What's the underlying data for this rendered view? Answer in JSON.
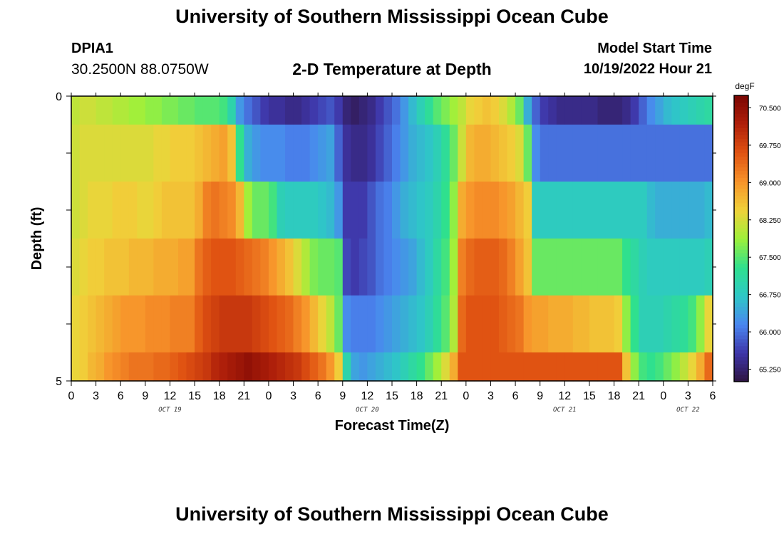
{
  "header": {
    "title": "University of Southern Mississippi Ocean Cube",
    "station_id": "DPIA1",
    "station_coords": "30.2500N  88.0750W",
    "chart_title": "2-D Temperature at Depth",
    "model_label": "Model Start Time",
    "model_value": "10/19/2022 Hour 21"
  },
  "footer": {
    "title": "University of Southern Mississippi Ocean Cube"
  },
  "colors": {
    "background": "#ffffff",
    "axis": "#000000",
    "palette": [
      "#2e1440",
      "#3e35a8",
      "#4a86f0",
      "#2ec8c6",
      "#2fe08e",
      "#9ef03a",
      "#f0d23a",
      "#f7932a",
      "#e05312",
      "#b0200a",
      "#7a0603"
    ]
  },
  "chart_data": {
    "type": "heatmap",
    "title": "2-D Temperature at Depth",
    "xlabel": "Forecast Time(Z)",
    "ylabel": "Depth (ft)",
    "unit": "degF",
    "xlim": [
      0,
      78
    ],
    "ylim": [
      0,
      5
    ],
    "x_ticks": [
      "0",
      "3",
      "6",
      "9",
      "12",
      "15",
      "18",
      "21",
      "0",
      "3",
      "6",
      "9",
      "12",
      "15",
      "18",
      "21",
      "0",
      "3",
      "6",
      "9",
      "12",
      "15",
      "18",
      "21",
      "0",
      "3",
      "6"
    ],
    "x_tick_hours": [
      0,
      3,
      6,
      9,
      12,
      15,
      18,
      21,
      24,
      27,
      30,
      33,
      36,
      39,
      42,
      45,
      48,
      51,
      54,
      57,
      60,
      63,
      66,
      69,
      72,
      75,
      78
    ],
    "day_labels": [
      {
        "label": "OCT 19",
        "hour": 12
      },
      {
        "label": "OCT 20",
        "hour": 36
      },
      {
        "label": "OCT 21",
        "hour": 60
      },
      {
        "label": "OCT 22",
        "hour": 75
      }
    ],
    "y_ticks": [
      {
        "value": 0,
        "label": "0"
      },
      {
        "value": 1,
        "label": ""
      },
      {
        "value": 2,
        "label": ""
      },
      {
        "value": 3,
        "label": ""
      },
      {
        "value": 4,
        "label": ""
      },
      {
        "value": 5,
        "label": "5"
      }
    ],
    "depth_bands": [
      [
        0.0,
        0.5
      ],
      [
        0.5,
        1.5
      ],
      [
        1.5,
        2.5
      ],
      [
        2.5,
        3.5
      ],
      [
        3.5,
        4.5
      ],
      [
        4.5,
        5.0
      ]
    ],
    "time_hours": [
      0,
      1,
      2,
      3,
      4,
      5,
      6,
      7,
      8,
      9,
      10,
      11,
      12,
      13,
      14,
      15,
      16,
      17,
      18,
      19,
      20,
      21,
      22,
      23,
      24,
      25,
      26,
      27,
      28,
      29,
      30,
      31,
      32,
      33,
      34,
      35,
      36,
      37,
      38,
      39,
      40,
      41,
      42,
      43,
      44,
      45,
      46,
      47,
      48,
      49,
      50,
      51,
      52,
      53,
      54,
      55,
      56,
      57,
      58,
      59,
      60,
      61,
      62,
      63,
      64,
      65,
      66,
      67,
      68,
      69,
      70,
      71,
      72,
      73,
      74,
      75,
      76,
      77
    ],
    "temperature_f": [
      [
        68.1,
        68.2,
        68.2,
        68.1,
        68.1,
        68.0,
        68.0,
        67.9,
        67.9,
        67.8,
        67.8,
        67.7,
        67.7,
        67.6,
        67.6,
        67.5,
        67.5,
        67.5,
        67.4,
        67.0,
        66.3,
        66.0,
        65.8,
        65.6,
        65.5,
        65.5,
        65.4,
        65.4,
        65.5,
        65.6,
        65.7,
        65.8,
        65.6,
        65.3,
        65.2,
        65.3,
        65.4,
        65.6,
        65.8,
        66.0,
        66.3,
        66.6,
        66.9,
        67.2,
        67.5,
        67.7,
        67.9,
        68.1,
        68.4,
        68.5,
        68.6,
        68.5,
        68.3,
        68.0,
        67.6,
        66.5,
        65.9,
        65.6,
        65.5,
        65.4,
        65.4,
        65.4,
        65.4,
        65.4,
        65.3,
        65.3,
        65.3,
        65.4,
        65.6,
        65.9,
        66.2,
        66.4,
        66.6,
        66.7,
        66.8,
        66.9,
        67.0,
        67.1
      ],
      [
        68.2,
        68.3,
        68.3,
        68.3,
        68.3,
        68.3,
        68.3,
        68.3,
        68.3,
        68.3,
        68.4,
        68.4,
        68.5,
        68.5,
        68.5,
        68.6,
        68.7,
        68.8,
        68.9,
        68.6,
        67.3,
        66.5,
        66.3,
        66.2,
        66.2,
        66.2,
        66.1,
        66.1,
        66.1,
        66.2,
        66.3,
        66.4,
        65.9,
        65.5,
        65.4,
        65.4,
        65.5,
        65.7,
        65.9,
        66.1,
        66.3,
        66.5,
        66.6,
        66.7,
        66.9,
        67.2,
        67.6,
        68.2,
        68.7,
        68.8,
        68.8,
        68.7,
        68.6,
        68.5,
        68.3,
        67.6,
        66.2,
        66.0,
        66.0,
        66.0,
        66.0,
        66.0,
        66.0,
        66.0,
        66.0,
        66.0,
        66.0,
        66.0,
        66.0,
        66.0,
        66.0,
        66.0,
        66.0,
        66.0,
        66.0,
        66.0,
        66.0,
        66.0
      ],
      [
        68.2,
        68.3,
        68.4,
        68.4,
        68.4,
        68.5,
        68.5,
        68.5,
        68.4,
        68.4,
        68.5,
        68.6,
        68.6,
        68.6,
        68.6,
        68.8,
        69.2,
        69.3,
        69.2,
        69.1,
        68.7,
        67.9,
        67.6,
        67.6,
        67.4,
        66.9,
        66.8,
        66.8,
        66.8,
        66.8,
        66.7,
        66.6,
        66.3,
        65.6,
        65.6,
        65.6,
        65.8,
        66.0,
        66.1,
        66.3,
        66.5,
        66.6,
        66.7,
        66.8,
        67.0,
        67.3,
        67.8,
        68.8,
        69.0,
        69.1,
        69.1,
        69.1,
        69.0,
        68.9,
        68.7,
        68.5,
        66.8,
        66.8,
        66.8,
        66.8,
        66.8,
        66.8,
        66.8,
        66.8,
        66.8,
        66.8,
        66.8,
        66.8,
        66.8,
        66.8,
        66.6,
        66.5,
        66.5,
        66.5,
        66.5,
        66.5,
        66.5,
        66.6
      ],
      [
        68.3,
        68.4,
        68.5,
        68.5,
        68.6,
        68.6,
        68.6,
        68.7,
        68.7,
        68.7,
        68.8,
        68.8,
        68.8,
        68.9,
        68.9,
        69.3,
        69.5,
        69.6,
        69.6,
        69.6,
        69.5,
        69.4,
        69.3,
        69.2,
        69.0,
        68.8,
        68.6,
        68.3,
        68.0,
        67.7,
        67.6,
        67.6,
        67.5,
        65.7,
        65.6,
        65.7,
        65.8,
        66.0,
        66.1,
        66.2,
        66.3,
        66.4,
        66.6,
        66.8,
        67.1,
        67.4,
        67.9,
        69.2,
        69.4,
        69.5,
        69.5,
        69.5,
        69.4,
        69.2,
        68.9,
        68.6,
        67.6,
        67.6,
        67.6,
        67.6,
        67.6,
        67.6,
        67.6,
        67.6,
        67.6,
        67.6,
        67.6,
        67.3,
        67.1,
        66.9,
        66.8,
        66.8,
        66.8,
        66.8,
        66.8,
        66.8,
        66.8,
        66.9
      ],
      [
        68.4,
        68.5,
        68.6,
        68.7,
        68.8,
        68.9,
        69.0,
        69.0,
        69.0,
        69.1,
        69.1,
        69.1,
        69.2,
        69.2,
        69.2,
        69.5,
        69.7,
        69.8,
        69.9,
        69.9,
        69.9,
        69.9,
        69.8,
        69.7,
        69.6,
        69.5,
        69.4,
        69.2,
        69.0,
        68.7,
        68.4,
        68.1,
        67.6,
        66.2,
        66.1,
        66.1,
        66.1,
        66.2,
        66.3,
        66.4,
        66.5,
        66.6,
        66.7,
        66.9,
        67.2,
        67.5,
        68.0,
        69.4,
        69.6,
        69.6,
        69.6,
        69.6,
        69.5,
        69.4,
        69.3,
        69.0,
        68.9,
        68.9,
        68.8,
        68.8,
        68.8,
        68.7,
        68.7,
        68.6,
        68.6,
        68.6,
        68.5,
        67.8,
        67.3,
        66.9,
        66.9,
        66.9,
        67.0,
        67.1,
        67.2,
        67.4,
        67.8,
        68.4
      ],
      [
        68.4,
        68.5,
        68.7,
        68.8,
        69.0,
        69.1,
        69.2,
        69.3,
        69.3,
        69.3,
        69.4,
        69.4,
        69.5,
        69.6,
        69.7,
        69.8,
        69.9,
        70.1,
        70.2,
        70.3,
        70.4,
        70.5,
        70.4,
        70.3,
        70.2,
        70.1,
        70.0,
        69.9,
        69.7,
        69.5,
        69.3,
        69.0,
        68.5,
        67.0,
        66.4,
        66.3,
        66.4,
        66.5,
        66.6,
        66.7,
        66.9,
        67.1,
        67.3,
        67.6,
        67.9,
        68.3,
        68.8,
        69.6,
        69.6,
        69.6,
        69.6,
        69.6,
        69.6,
        69.6,
        69.6,
        69.6,
        69.6,
        69.6,
        69.6,
        69.6,
        69.6,
        69.6,
        69.6,
        69.6,
        69.6,
        69.6,
        69.6,
        68.6,
        67.8,
        67.4,
        67.3,
        67.4,
        67.6,
        67.8,
        68.1,
        68.4,
        68.8,
        69.4
      ]
    ],
    "colorbar": {
      "label": "degF",
      "min": 65.0,
      "max": 70.75,
      "ticks": [
        "70.500",
        "69.750",
        "69.000",
        "68.250",
        "67.500",
        "66.750",
        "66.000",
        "65.250"
      ],
      "tick_values": [
        70.5,
        69.75,
        69.0,
        68.25,
        67.5,
        66.75,
        66.0,
        65.25
      ]
    }
  }
}
